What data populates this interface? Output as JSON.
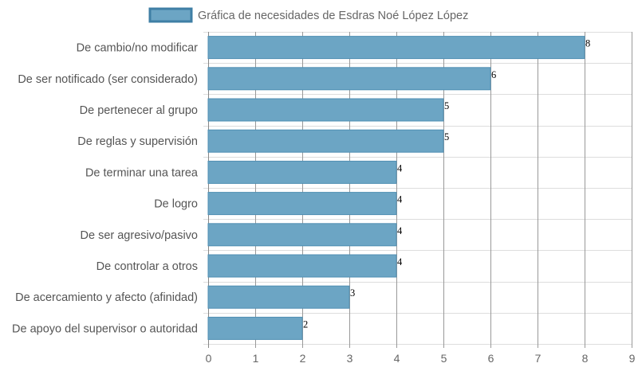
{
  "chart_data": {
    "type": "bar",
    "orientation": "horizontal",
    "categories": [
      "De cambio/no modificar",
      "De ser notificado (ser considerado)",
      "De pertenecer al grupo",
      "De reglas y supervisión",
      "De terminar una tarea",
      "De logro",
      "De ser agresivo/pasivo",
      "De controlar a otros",
      "De acercamiento y afecto (afinidad)",
      "De apoyo del supervisor o autoridad"
    ],
    "series": [
      {
        "name": "Gráfica de necesidades de Esdras Noé López López",
        "values": [
          8,
          6,
          5,
          5,
          4,
          4,
          4,
          4,
          3,
          2
        ],
        "color": "#6ca5c4"
      }
    ],
    "xlim": [
      0,
      9
    ],
    "xticks": [
      "0",
      "1",
      "2",
      "3",
      "4",
      "5",
      "6",
      "7",
      "8",
      "9"
    ],
    "grid": true,
    "legend_position": "top",
    "colors": {
      "bar_fill": "#6ca5c4",
      "bar_stroke": "#4f8fb3",
      "grid": "#dddddd",
      "vertical_grid": "#999999"
    }
  }
}
